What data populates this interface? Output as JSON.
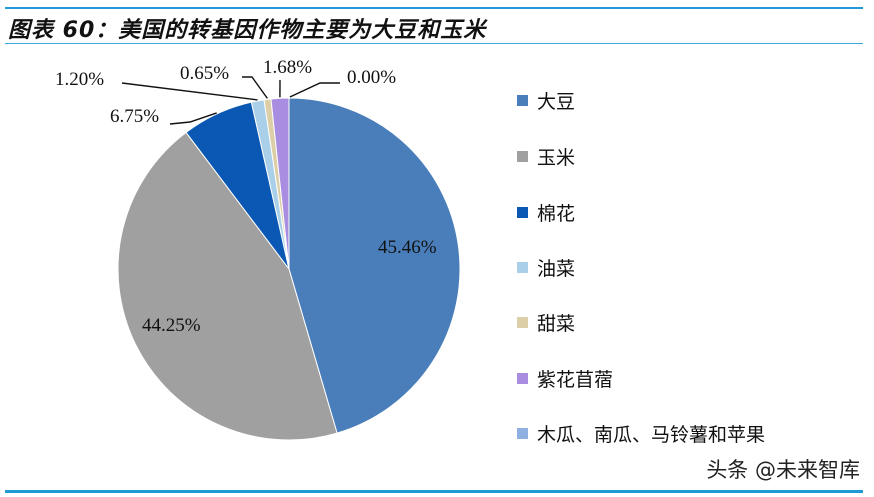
{
  "title": "图表 60：美国的转基因作物主要为大豆和玉米",
  "watermark": "头条 @未来智库",
  "colors": {
    "rule": "#1e9ad6"
  },
  "chart_data": {
    "type": "pie",
    "title": "图表 60：美国的转基因作物主要为大豆和玉米",
    "start_angle_deg": 0,
    "direction": "clockwise",
    "legend_position": "right",
    "slices": [
      {
        "name": "大豆",
        "value": 45.46,
        "label": "45.46%",
        "color": "#4a7ebb"
      },
      {
        "name": "玉米",
        "value": 44.25,
        "label": "44.25%",
        "color": "#a0a0a0"
      },
      {
        "name": "棉花",
        "value": 6.75,
        "label": "6.75%",
        "color": "#0b58b4"
      },
      {
        "name": "油菜",
        "value": 1.2,
        "label": "1.20%",
        "color": "#a9d0e8"
      },
      {
        "name": "甜菜",
        "value": 0.65,
        "label": "0.65%",
        "color": "#dccfa8"
      },
      {
        "name": "紫花苜蓿",
        "value": 1.68,
        "label": "1.68%",
        "color": "#a98de0"
      },
      {
        "name": "木瓜、南瓜、马铃薯和苹果",
        "value": 0.0,
        "label": "0.00%",
        "color": "#8fb0e0"
      }
    ]
  },
  "legend": {
    "items": [
      {
        "label": "大豆",
        "color": "#4a7ebb"
      },
      {
        "label": "玉米",
        "color": "#a0a0a0"
      },
      {
        "label": "棉花",
        "color": "#0b58b4"
      },
      {
        "label": "油菜",
        "color": "#a9d0e8"
      },
      {
        "label": "甜菜",
        "color": "#dccfa8"
      },
      {
        "label": "紫花苜蓿",
        "color": "#a98de0"
      },
      {
        "label": "木瓜、南瓜、马铃薯和苹果",
        "color": "#8fb0e0"
      }
    ]
  }
}
